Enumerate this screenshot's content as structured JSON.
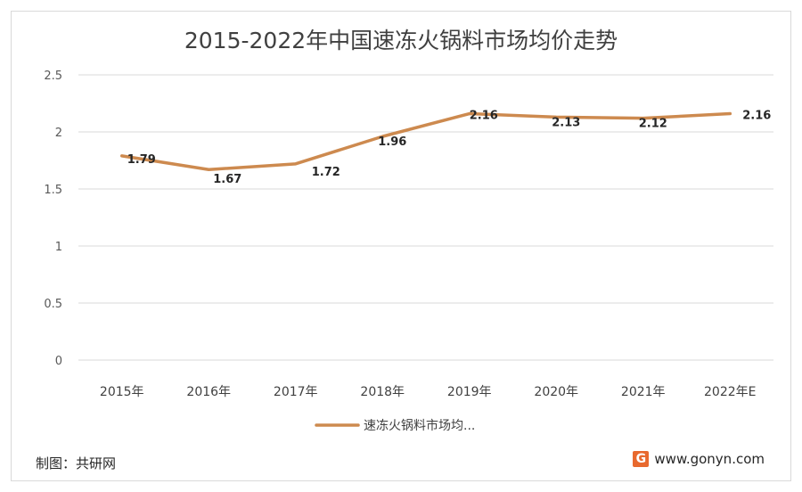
{
  "footer": {
    "source": "制图：共研网",
    "website": "www.gonyn.com",
    "logo_letter": "G"
  },
  "colors": {
    "line": "#cd8a4f",
    "grid": "#d9d9d9",
    "text": "#404040"
  },
  "chart_data": {
    "type": "line",
    "title": "2015-2022年中国速冻火锅料市场均价走势",
    "categories": [
      "2015年",
      "2016年",
      "2017年",
      "2018年",
      "2019年",
      "2020年",
      "2021年",
      "2022年E"
    ],
    "series": [
      {
        "name": "速冻火锅料市场均...",
        "values": [
          1.79,
          1.67,
          1.72,
          1.96,
          2.16,
          2.13,
          2.12,
          2.16
        ]
      }
    ],
    "data_labels": [
      "1.79",
      "1.67",
      "1.72",
      "1.96",
      "2.16",
      "2.13",
      "2.12",
      "2.16"
    ],
    "yticks": [
      "0",
      "0.5",
      "1",
      "1.5",
      "2",
      "2.5"
    ],
    "ylim": [
      0,
      2.5
    ],
    "grid": true,
    "legend_position": "bottom"
  }
}
